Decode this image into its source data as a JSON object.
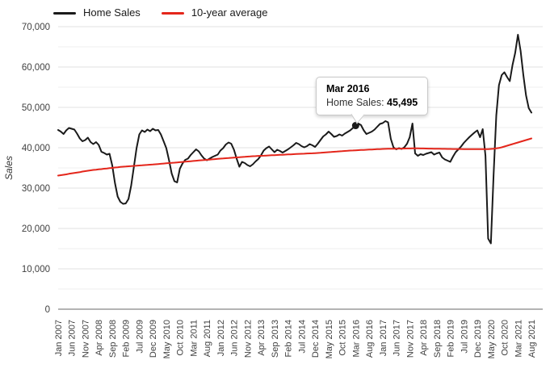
{
  "chart_data": {
    "type": "line",
    "title": "",
    "ylabel": "Sales",
    "x_unit": "month",
    "x_start": "Jan 2007",
    "x_end": "Aug 2021",
    "x_tick_interval_months": 5,
    "x_tick_labels": [
      "Jan 2007",
      "Jun 2007",
      "Nov 2007",
      "Apr 2008",
      "Sep 2008",
      "Feb 2009",
      "Jul 2009",
      "Dec 2009",
      "May 2010",
      "Oct 2010",
      "Mar 2011",
      "Aug 2011",
      "Jan 2012",
      "Jun 2012",
      "Nov 2012",
      "Apr 2013",
      "Sep 2013",
      "Feb 2014",
      "Jul 2014",
      "Dec 2014",
      "May 2015",
      "Oct 2015",
      "Mar 2016",
      "Aug 2016",
      "Jan 2017",
      "Jun 2017",
      "Nov 2017",
      "Apr 2018",
      "Sep 2018",
      "Feb 2019",
      "Jul 2019",
      "Dec 2019",
      "May 2020",
      "Oct 2020",
      "Mar 2021",
      "Aug 2021"
    ],
    "y_tick_labels": [
      "0",
      "10,000",
      "20,000",
      "30,000",
      "40,000",
      "50,000",
      "60,000",
      "70,000"
    ],
    "ylim": [
      0,
      70000
    ],
    "y_major_step": 10000,
    "y_minor_step": 5000,
    "grid": "horizontal",
    "legend_position": "top-left",
    "series": [
      {
        "name": "Home Sales",
        "color": "#1a1a1a",
        "values": [
          44400,
          44000,
          43400,
          44300,
          44900,
          44700,
          44500,
          43500,
          42300,
          41600,
          41900,
          42500,
          41400,
          40900,
          41400,
          40700,
          39000,
          38700,
          38300,
          38500,
          35600,
          31300,
          27900,
          26600,
          26100,
          26200,
          27300,
          30600,
          35300,
          39900,
          43300,
          44300,
          43900,
          44500,
          44100,
          44700,
          44300,
          44400,
          43300,
          41600,
          39900,
          36900,
          33600,
          31700,
          31400,
          34800,
          36100,
          37000,
          37300,
          38200,
          38900,
          39600,
          39100,
          38100,
          37300,
          36900,
          37300,
          37700,
          38000,
          38300,
          39300,
          39900,
          40800,
          41300,
          41000,
          39500,
          37300,
          35300,
          36500,
          36200,
          35700,
          35400,
          35900,
          36600,
          37200,
          38100,
          39300,
          39900,
          40300,
          39600,
          38900,
          39500,
          39200,
          38800,
          39200,
          39600,
          40100,
          40600,
          41200,
          40900,
          40400,
          40100,
          40400,
          40900,
          40600,
          40200,
          41000,
          41900,
          42800,
          43300,
          44000,
          43400,
          42700,
          42900,
          43300,
          43000,
          43500,
          43900,
          44300,
          44900,
          45495,
          46000,
          45600,
          44300,
          43400,
          43700,
          44000,
          44500,
          45200,
          45900,
          46100,
          46600,
          46300,
          42200,
          40100,
          39600,
          39900,
          39700,
          40100,
          41000,
          42600,
          46000,
          38600,
          38000,
          38400,
          38200,
          38500,
          38700,
          38900,
          38300,
          38600,
          38800,
          37600,
          37100,
          36800,
          36500,
          37800,
          38900,
          39600,
          40300,
          41200,
          41900,
          42600,
          43200,
          43800,
          44300,
          42600,
          44600,
          38000,
          17500,
          16300,
          33000,
          48000,
          55500,
          58000,
          58700,
          57500,
          56500,
          60500,
          63500,
          68000,
          64000,
          58000,
          53000,
          49800,
          48700
        ]
      },
      {
        "name": "10-year average",
        "color": "#e4261b",
        "values": [
          33100,
          33200,
          33300,
          33400,
          33550,
          33650,
          33750,
          33850,
          33950,
          34100,
          34200,
          34300,
          34400,
          34500,
          34550,
          34650,
          34700,
          34800,
          34850,
          34950,
          35000,
          35100,
          35150,
          35250,
          35300,
          35350,
          35400,
          35450,
          35500,
          35550,
          35600,
          35650,
          35700,
          35750,
          35800,
          35850,
          35900,
          35960,
          36020,
          36080,
          36130,
          36190,
          36250,
          36310,
          36370,
          36420,
          36480,
          36540,
          36600,
          36660,
          36720,
          36780,
          36830,
          36890,
          36950,
          37010,
          37070,
          37120,
          37180,
          37240,
          37300,
          37350,
          37400,
          37450,
          37500,
          37550,
          37600,
          37650,
          37700,
          37750,
          37800,
          37850,
          37900,
          37930,
          37970,
          38000,
          38030,
          38070,
          38100,
          38130,
          38170,
          38200,
          38230,
          38270,
          38300,
          38330,
          38370,
          38400,
          38430,
          38470,
          38500,
          38530,
          38570,
          38600,
          38630,
          38670,
          38700,
          38750,
          38800,
          38850,
          38900,
          38950,
          39000,
          39050,
          39100,
          39150,
          39200,
          39250,
          39300,
          39330,
          39370,
          39400,
          39430,
          39470,
          39500,
          39530,
          39570,
          39600,
          39630,
          39670,
          39700,
          39710,
          39730,
          39740,
          39750,
          39760,
          39780,
          39790,
          39800,
          39810,
          39830,
          39840,
          39850,
          39840,
          39820,
          39810,
          39800,
          39790,
          39770,
          39760,
          39750,
          39740,
          39720,
          39710,
          39700,
          39700,
          39690,
          39690,
          39680,
          39680,
          39670,
          39670,
          39660,
          39660,
          39650,
          39650,
          39650,
          39650,
          39650,
          39650,
          39700,
          39750,
          39850,
          39950,
          40100,
          40300,
          40500,
          40700,
          40900,
          41100,
          41300,
          41500,
          41700,
          41900,
          42100,
          42300
        ]
      }
    ],
    "annotation": {
      "tooltip_title": "Mar 2016",
      "tooltip_label": "Home Sales: ",
      "tooltip_value": "45,495",
      "marker_index": 110,
      "marker_value": 45495
    }
  },
  "colors": {
    "grid_major": "#e1e1e1",
    "grid_minor": "#efefef",
    "axis_line": "#9a9a9a",
    "tick_label": "#404040",
    "axis_title": "#333333",
    "tooltip_border": "#c9c9c9",
    "background": "#ffffff"
  }
}
